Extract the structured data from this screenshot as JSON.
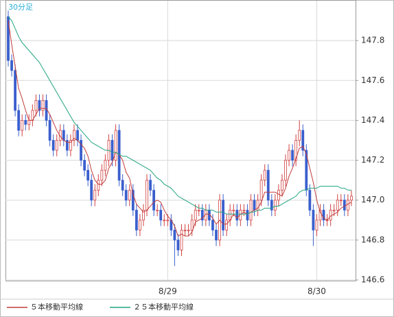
{
  "chart_data": {
    "type": "candlestick",
    "title": "30分足",
    "categories": [
      null,
      null,
      null,
      null,
      null,
      null,
      null,
      null,
      null,
      null,
      null,
      null,
      null,
      null,
      null,
      null,
      null,
      null,
      null,
      null,
      null,
      null,
      null,
      null,
      null,
      null,
      null,
      null,
      null,
      null,
      null,
      null,
      null,
      null,
      null,
      null,
      null,
      null,
      null,
      null,
      null,
      null,
      null,
      null,
      null,
      null,
      "8/29",
      null,
      null,
      null,
      null,
      null,
      null,
      null,
      null,
      null,
      null,
      null,
      null,
      null,
      null,
      null,
      null,
      null,
      null,
      null,
      null,
      null,
      null,
      null,
      null,
      null,
      null,
      null,
      null,
      null,
      null,
      null,
      null,
      null,
      null,
      null,
      null,
      null,
      null,
      null,
      null,
      null,
      null,
      "8/30",
      null,
      null,
      null,
      null,
      null,
      null,
      null,
      null,
      null,
      null
    ],
    "candles": {
      "open": [
        147.92,
        147.7,
        147.65,
        147.45,
        147.35,
        147.4,
        147.38,
        147.4,
        147.45,
        147.5,
        147.45,
        147.5,
        147.4,
        147.3,
        147.25,
        147.3,
        147.35,
        147.3,
        147.25,
        147.3,
        147.35,
        147.3,
        147.2,
        147.15,
        147.1,
        147.0,
        147.05,
        147.1,
        147.15,
        147.2,
        147.3,
        147.2,
        147.35,
        147.1,
        147.05,
        147.0,
        147.05,
        146.95,
        146.85,
        146.9,
        146.95,
        147.1,
        147.05,
        146.95,
        146.95,
        146.9,
        146.9,
        146.9,
        146.85,
        146.8,
        146.75,
        146.85,
        146.85,
        146.85,
        146.9,
        146.95,
        146.95,
        146.9,
        146.95,
        146.9,
        146.85,
        146.8,
        147.0,
        146.85,
        146.9,
        146.95,
        146.95,
        146.9,
        146.95,
        146.95,
        146.9,
        147.0,
        146.95,
        147.0,
        147.1,
        147.15,
        147.0,
        146.95,
        147.0,
        147.05,
        147.1,
        147.2,
        147.25,
        147.2,
        147.3,
        147.35,
        147.25,
        147.05,
        146.95,
        146.85,
        146.9,
        146.95,
        146.9,
        146.9,
        146.95,
        146.95,
        147.0,
        147.0,
        146.95,
        147.0
      ],
      "high": [
        147.95,
        147.73,
        147.68,
        147.48,
        147.43,
        147.43,
        147.43,
        147.48,
        147.53,
        147.53,
        147.53,
        147.53,
        147.43,
        147.33,
        147.33,
        147.38,
        147.38,
        147.33,
        147.33,
        147.38,
        147.38,
        147.33,
        147.23,
        147.18,
        147.13,
        147.08,
        147.13,
        147.18,
        147.23,
        147.33,
        147.33,
        147.38,
        147.38,
        147.13,
        147.08,
        147.08,
        147.08,
        146.98,
        146.93,
        146.98,
        147.13,
        147.13,
        147.08,
        146.98,
        146.98,
        146.93,
        146.93,
        146.93,
        146.88,
        146.83,
        146.88,
        146.88,
        146.88,
        146.93,
        146.98,
        146.98,
        146.98,
        146.98,
        146.98,
        146.93,
        146.88,
        147.03,
        147.03,
        146.93,
        146.98,
        146.98,
        146.98,
        146.98,
        146.98,
        146.98,
        147.03,
        147.03,
        147.03,
        147.13,
        147.18,
        147.18,
        147.03,
        147.03,
        147.08,
        147.13,
        147.23,
        147.28,
        147.28,
        147.33,
        147.4,
        147.38,
        147.28,
        147.08,
        146.98,
        146.93,
        146.98,
        146.98,
        146.93,
        146.98,
        146.98,
        147.03,
        147.03,
        147.03,
        147.03,
        147.05
      ],
      "low": [
        147.67,
        147.62,
        147.42,
        147.32,
        147.32,
        147.35,
        147.35,
        147.37,
        147.42,
        147.42,
        147.42,
        147.37,
        147.27,
        147.22,
        147.22,
        147.27,
        147.27,
        147.22,
        147.22,
        147.27,
        147.27,
        147.17,
        147.12,
        147.07,
        146.97,
        146.97,
        147.02,
        147.07,
        147.12,
        147.17,
        147.17,
        147.17,
        147.07,
        147.02,
        146.97,
        146.97,
        146.92,
        146.82,
        146.82,
        146.87,
        146.92,
        147.02,
        146.92,
        146.92,
        146.87,
        146.87,
        146.87,
        146.82,
        146.67,
        146.72,
        146.72,
        146.82,
        146.82,
        146.82,
        146.87,
        146.92,
        146.87,
        146.87,
        146.87,
        146.82,
        146.77,
        146.77,
        146.82,
        146.82,
        146.87,
        146.92,
        146.87,
        146.87,
        146.92,
        146.87,
        146.87,
        146.92,
        146.92,
        146.97,
        147.07,
        146.97,
        146.92,
        146.92,
        146.97,
        147.02,
        147.07,
        147.17,
        147.17,
        147.17,
        147.27,
        147.22,
        147.02,
        146.92,
        146.77,
        146.82,
        146.87,
        146.87,
        146.87,
        146.87,
        146.92,
        146.92,
        146.97,
        146.92,
        146.92,
        146.97
      ],
      "close": [
        147.7,
        147.65,
        147.45,
        147.35,
        147.4,
        147.38,
        147.4,
        147.45,
        147.5,
        147.45,
        147.5,
        147.4,
        147.3,
        147.25,
        147.3,
        147.35,
        147.3,
        147.25,
        147.3,
        147.35,
        147.3,
        147.2,
        147.15,
        147.1,
        147.0,
        147.05,
        147.1,
        147.15,
        147.2,
        147.3,
        147.2,
        147.35,
        147.1,
        147.05,
        147.0,
        147.05,
        146.95,
        146.85,
        146.9,
        146.95,
        147.1,
        147.05,
        146.95,
        146.95,
        146.9,
        146.9,
        146.9,
        146.85,
        146.8,
        146.75,
        146.85,
        146.85,
        146.85,
        146.9,
        146.95,
        146.95,
        146.9,
        146.95,
        146.9,
        146.85,
        146.8,
        147.0,
        146.85,
        146.9,
        146.95,
        146.95,
        146.9,
        146.95,
        146.95,
        146.9,
        147.0,
        146.95,
        147.0,
        147.1,
        147.15,
        147.0,
        146.95,
        147.0,
        147.05,
        147.1,
        147.2,
        147.25,
        147.2,
        147.3,
        147.35,
        147.25,
        147.05,
        146.95,
        146.85,
        146.9,
        146.95,
        146.9,
        146.9,
        146.95,
        146.95,
        147.0,
        147.0,
        146.95,
        147.0,
        147.02
      ],
      "up_color": "#d04040",
      "down_color": "#3a5fcd"
    },
    "series": [
      {
        "name": "５本移動平均線",
        "color": "#c03a3a",
        "values": [
          147.9,
          147.78,
          147.67,
          147.56,
          147.51,
          147.45,
          147.4,
          147.4,
          147.43,
          147.46,
          147.46,
          147.46,
          147.43,
          147.39,
          147.35,
          147.32,
          147.3,
          147.29,
          147.29,
          147.31,
          147.3,
          147.28,
          147.26,
          147.22,
          147.15,
          147.1,
          147.08,
          147.08,
          147.1,
          147.16,
          147.19,
          147.24,
          147.23,
          147.2,
          147.14,
          147.11,
          147.03,
          146.98,
          146.96,
          146.94,
          146.95,
          146.97,
          146.99,
          147.0,
          146.99,
          146.95,
          146.92,
          146.9,
          146.87,
          146.82,
          146.83,
          146.82,
          146.82,
          146.84,
          146.89,
          146.9,
          146.91,
          146.93,
          146.93,
          146.91,
          146.88,
          146.9,
          146.88,
          146.88,
          146.9,
          146.93,
          146.91,
          146.93,
          146.94,
          146.93,
          146.94,
          146.95,
          146.96,
          146.99,
          147.04,
          147.04,
          147.04,
          147.04,
          147.03,
          147.02,
          147.06,
          147.12,
          147.16,
          147.21,
          147.26,
          147.27,
          147.23,
          147.16,
          147.09,
          147.0,
          146.94,
          146.91,
          146.9,
          146.92,
          146.93,
          146.94,
          146.96,
          146.97,
          146.98,
          146.99
        ]
      },
      {
        "name": "２５本移動平均線",
        "color": "#1fa37f",
        "values": [
          147.92,
          147.9,
          147.86,
          147.82,
          147.79,
          147.77,
          147.75,
          147.73,
          147.71,
          147.69,
          147.66,
          147.63,
          147.6,
          147.57,
          147.54,
          147.51,
          147.48,
          147.45,
          147.42,
          147.39,
          147.37,
          147.35,
          147.33,
          147.31,
          147.29,
          147.28,
          147.27,
          147.26,
          147.25,
          147.25,
          147.24,
          147.24,
          147.23,
          147.22,
          147.22,
          147.21,
          147.2,
          147.19,
          147.18,
          147.17,
          147.16,
          147.15,
          147.13,
          147.11,
          147.1,
          147.08,
          147.07,
          147.06,
          147.04,
          147.02,
          147.01,
          147.0,
          146.99,
          146.98,
          146.97,
          146.96,
          146.96,
          146.95,
          146.95,
          146.95,
          146.94,
          146.94,
          146.94,
          146.93,
          146.93,
          146.93,
          146.93,
          146.93,
          146.93,
          146.93,
          146.94,
          146.94,
          146.95,
          146.95,
          146.96,
          146.96,
          146.96,
          146.97,
          146.97,
          146.98,
          146.99,
          147.0,
          147.01,
          147.02,
          147.04,
          147.05,
          147.05,
          147.06,
          147.06,
          147.06,
          147.07,
          147.07,
          147.07,
          147.07,
          147.07,
          147.07,
          147.06,
          147.06,
          147.05,
          147.05
        ]
      }
    ],
    "ylim": [
      146.6,
      148.0
    ],
    "yticks": [
      146.6,
      146.8,
      {
        "value": 147,
        "label": "147.0"
      },
      147.2,
      147.4,
      147.6,
      147.8
    ],
    "grid": true
  }
}
